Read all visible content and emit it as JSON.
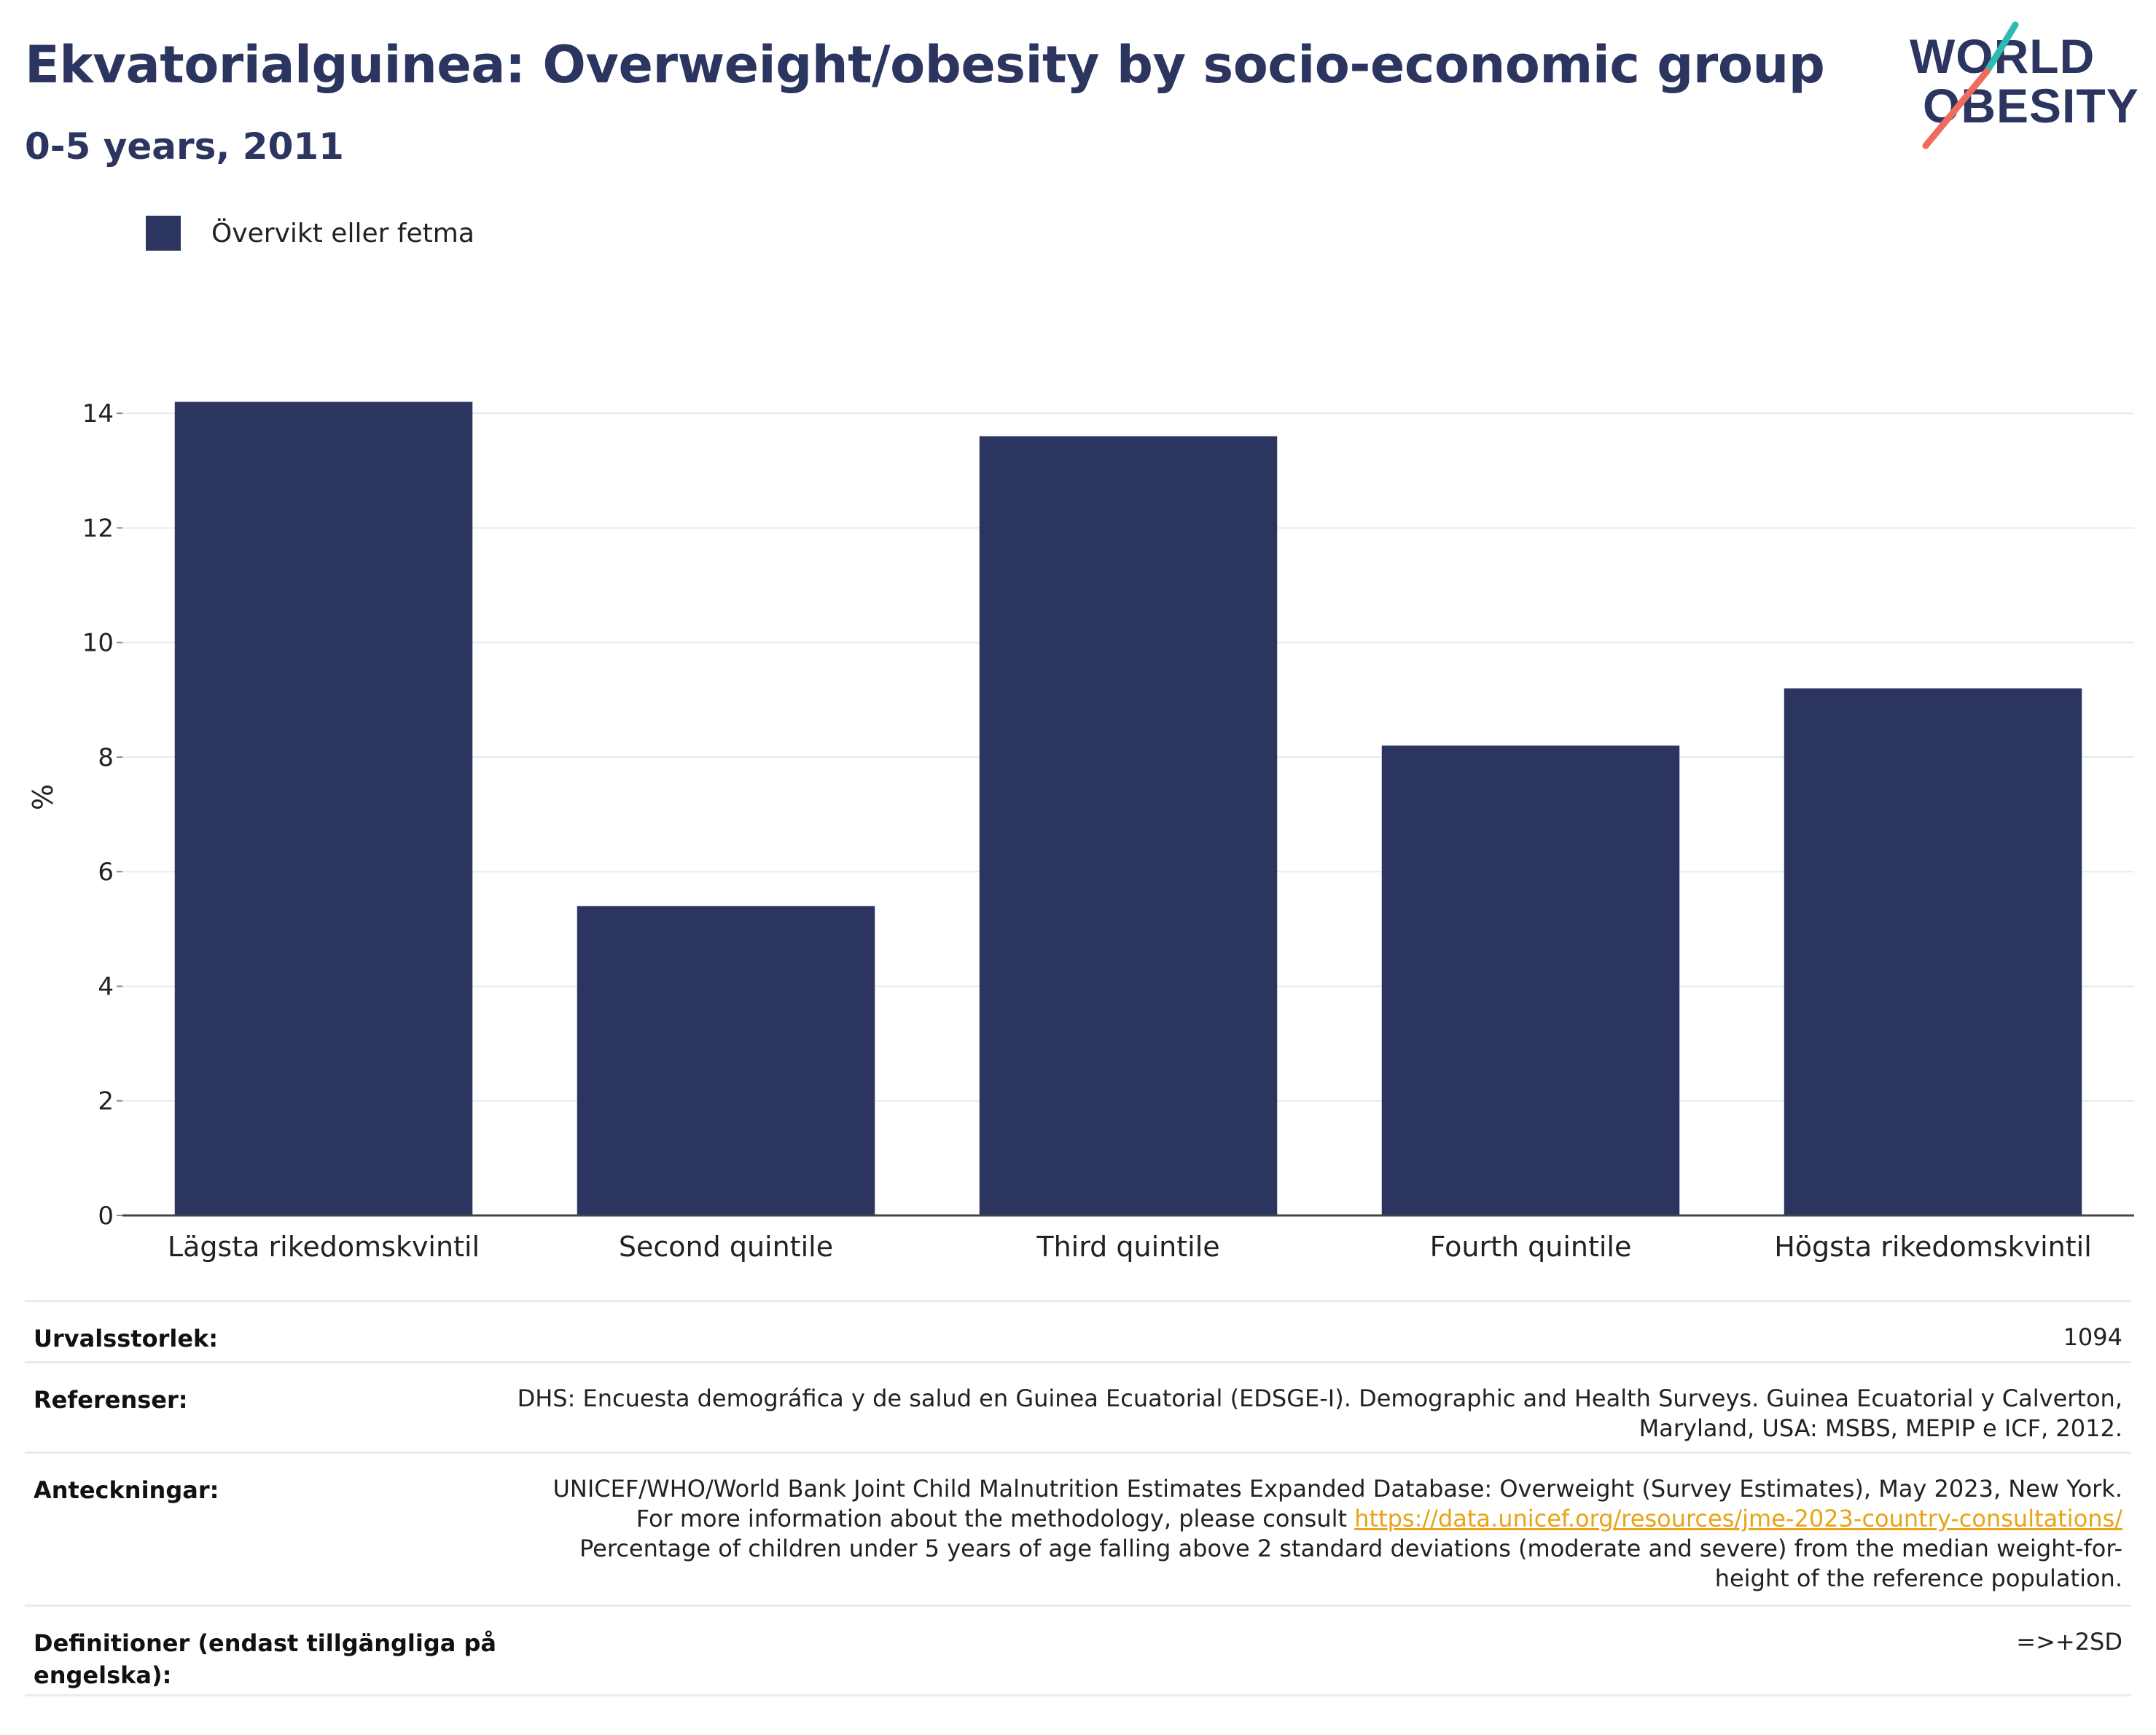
{
  "header": {
    "title": "Ekvatorialguinea: Overweight/obesity by socio-economic group",
    "subtitle": "0-5 years, 2011"
  },
  "logo": {
    "line1": "WORLD",
    "line2": "OBESITY"
  },
  "colors": {
    "bar": "#2b3560",
    "title": "#2b3560",
    "link": "#e8a317",
    "logo_teal": "#2ebbb4",
    "logo_coral": "#ef6b5b"
  },
  "chart_data": {
    "type": "bar",
    "categories": [
      "Lägsta rikedomskvintil",
      "Second quintile",
      "Third quintile",
      "Fourth quintile",
      "Högsta rikedomskvintil"
    ],
    "series": [
      {
        "name": "Övervikt eller fetma",
        "values": [
          14.2,
          5.4,
          13.6,
          8.2,
          9.2
        ]
      }
    ],
    "ylabel": "%",
    "ylim": [
      0,
      14.6
    ],
    "yticks": [
      0,
      2,
      4,
      6,
      8,
      10,
      12,
      14
    ],
    "grid": true,
    "legend": "top-left"
  },
  "meta": {
    "sample_label": "Urvalsstorlek:",
    "sample_value": "1094",
    "references_label": "Referenser:",
    "references_value": "DHS: Encuesta demográfica y de salud en Guinea Ecuatorial (EDSGE-I). Demographic and Health Surveys. Guinea Ecuatorial y Calverton, Maryland, USA: MSBS, MEPIP e ICF, 2012.",
    "notes_label": "Anteckningar:",
    "notes_text1": "UNICEF/WHO/World Bank Joint Child Malnutrition Estimates Expanded Database: Overweight (Survey Estimates), May 2023, New York. For more information about the methodology, please consult ",
    "notes_link": "https://data.unicef.org/resources/jme-2023-country-consultations/",
    "notes_text2": " Percentage of children under 5 years of age falling above 2 standard deviations (moderate and severe) from the median weight-for-height of the reference population.",
    "definitions_label": "Definitioner (endast tillgängliga på engelska):",
    "definitions_value": "=>+2SD"
  }
}
